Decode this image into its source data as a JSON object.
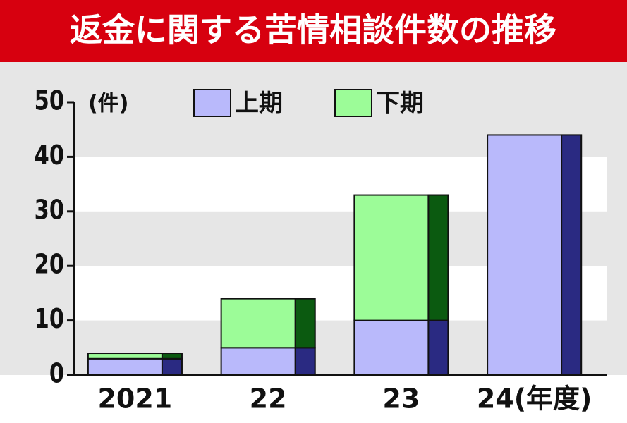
{
  "chart_data": {
    "type": "stacked_bar",
    "title": "返金に関する苦情相談件数の推移",
    "y_unit": "(件)",
    "categories": [
      "2021",
      "22",
      "23",
      "24(年度)"
    ],
    "series": [
      {
        "name": "上期",
        "color": "#b9b9fb",
        "values": [
          3,
          5,
          10,
          44
        ]
      },
      {
        "name": "下期",
        "color": "#9cfc98",
        "values": [
          1,
          9,
          23,
          null
        ]
      }
    ],
    "ylim": [
      0,
      50
    ],
    "yticks": [
      0,
      10,
      20,
      30,
      40,
      50
    ]
  }
}
